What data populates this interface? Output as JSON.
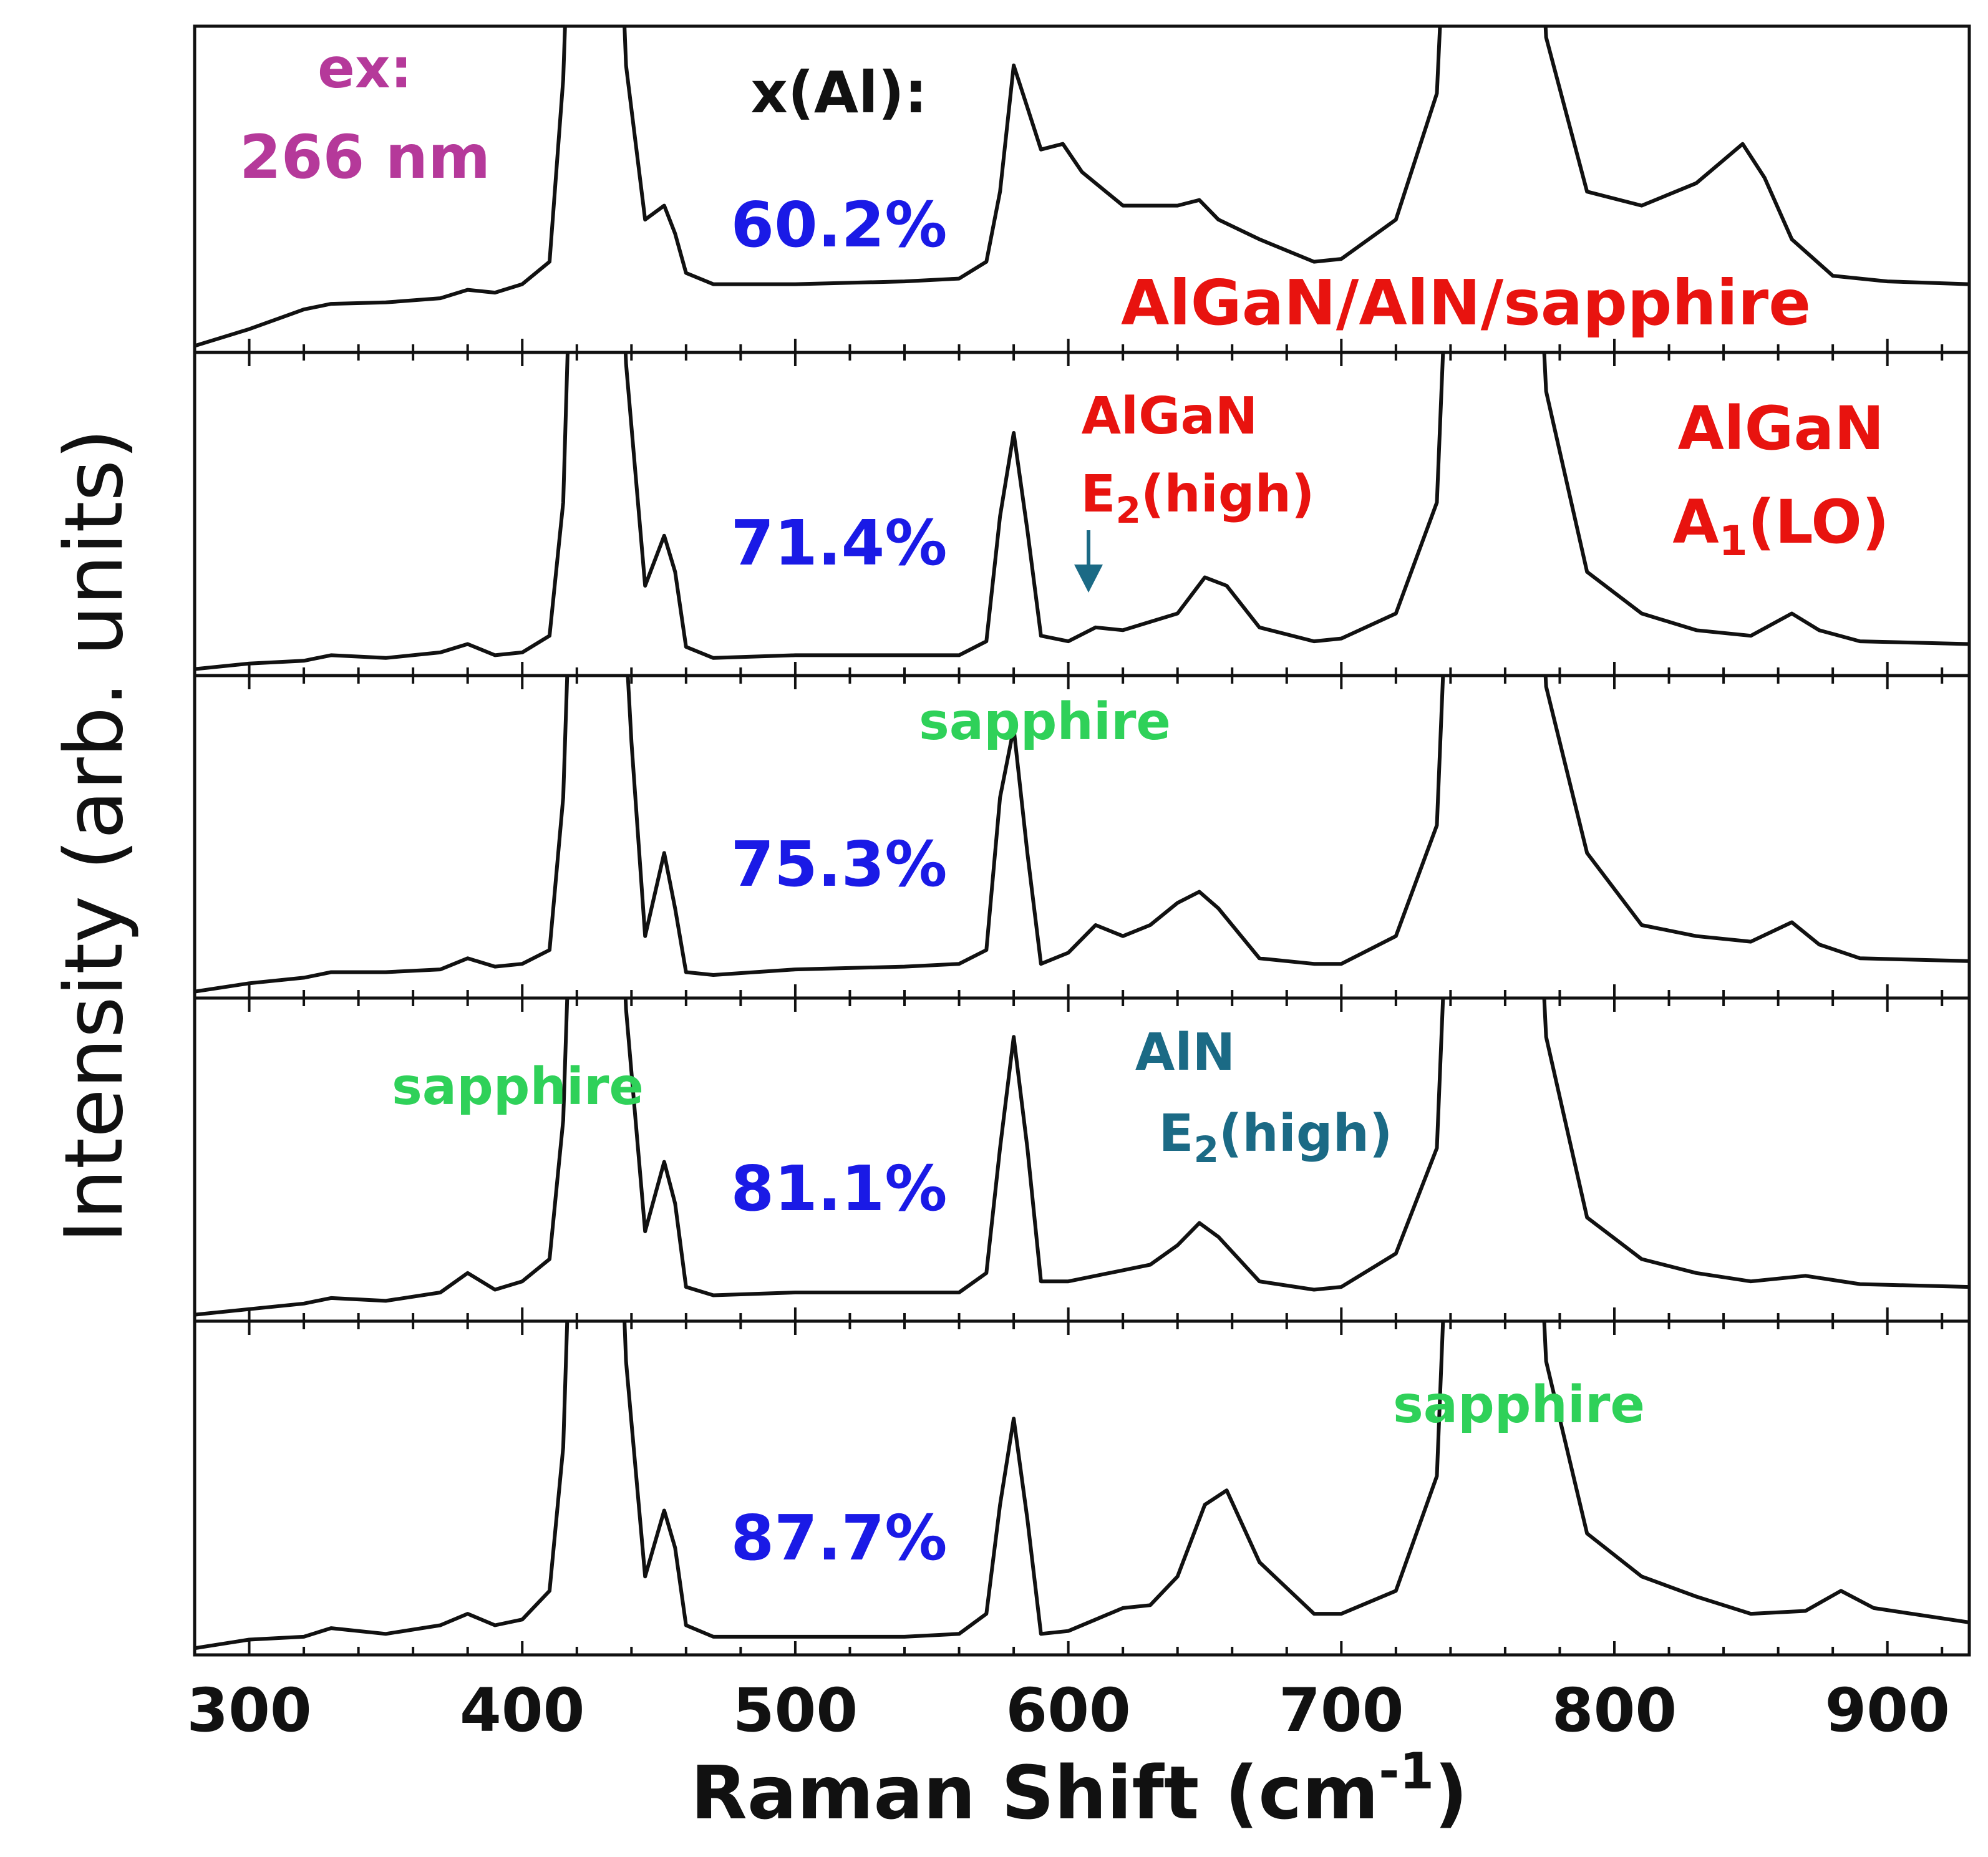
{
  "chart_data": {
    "type": "line",
    "title": "",
    "xlabel_main": "Raman Shift (cm",
    "xlabel_sup": "-1",
    "xlabel_close": ")",
    "ylabel": "Intensity (arb. units)",
    "xlim": [
      280,
      930
    ],
    "x_ticks": [
      "300",
      "400",
      "500",
      "600",
      "700",
      "800",
      "900"
    ],
    "series_label_color": "#1a1ae6",
    "series": [
      {
        "name": "60.2%",
        "baseline": 0.06,
        "points": [
          [
            280,
            0.0
          ],
          [
            300,
            0.06
          ],
          [
            320,
            0.13
          ],
          [
            330,
            0.15
          ],
          [
            350,
            0.155
          ],
          [
            370,
            0.17
          ],
          [
            380,
            0.2
          ],
          [
            390,
            0.19
          ],
          [
            400,
            0.22
          ],
          [
            410,
            0.3
          ],
          [
            415,
            0.95
          ],
          [
            418,
            1.8
          ],
          [
            425,
            3
          ],
          [
            430,
            3
          ],
          [
            438,
            1.0
          ],
          [
            445,
            0.45
          ],
          [
            452,
            0.5
          ],
          [
            456,
            0.4
          ],
          [
            460,
            0.26
          ],
          [
            470,
            0.22
          ],
          [
            500,
            0.22
          ],
          [
            540,
            0.23
          ],
          [
            560,
            0.24
          ],
          [
            570,
            0.3
          ],
          [
            575,
            0.55
          ],
          [
            580,
            1.0
          ],
          [
            585,
            0.85
          ],
          [
            590,
            0.7
          ],
          [
            598,
            0.72
          ],
          [
            605,
            0.62
          ],
          [
            620,
            0.5
          ],
          [
            640,
            0.5
          ],
          [
            648,
            0.52
          ],
          [
            655,
            0.45
          ],
          [
            670,
            0.38
          ],
          [
            690,
            0.3
          ],
          [
            700,
            0.31
          ],
          [
            720,
            0.45
          ],
          [
            735,
            0.9
          ],
          [
            745,
            3
          ],
          [
            765,
            3
          ],
          [
            775,
            1.1
          ],
          [
            790,
            0.55
          ],
          [
            810,
            0.5
          ],
          [
            830,
            0.58
          ],
          [
            847,
            0.72
          ],
          [
            855,
            0.6
          ],
          [
            865,
            0.38
          ],
          [
            880,
            0.25
          ],
          [
            900,
            0.23
          ],
          [
            930,
            0.22
          ]
        ]
      },
      {
        "name": "71.4%",
        "baseline": 0.04,
        "points": [
          [
            280,
            0.0
          ],
          [
            300,
            0.02
          ],
          [
            320,
            0.03
          ],
          [
            330,
            0.05
          ],
          [
            350,
            0.04
          ],
          [
            370,
            0.06
          ],
          [
            380,
            0.09
          ],
          [
            390,
            0.05
          ],
          [
            400,
            0.06
          ],
          [
            410,
            0.12
          ],
          [
            415,
            0.6
          ],
          [
            418,
            1.6
          ],
          [
            425,
            3
          ],
          [
            430,
            3
          ],
          [
            438,
            1.1
          ],
          [
            445,
            0.3
          ],
          [
            452,
            0.48
          ],
          [
            456,
            0.35
          ],
          [
            460,
            0.08
          ],
          [
            470,
            0.04
          ],
          [
            500,
            0.05
          ],
          [
            540,
            0.05
          ],
          [
            560,
            0.05
          ],
          [
            570,
            0.1
          ],
          [
            575,
            0.55
          ],
          [
            580,
            0.85
          ],
          [
            585,
            0.5
          ],
          [
            590,
            0.12
          ],
          [
            600,
            0.1
          ],
          [
            610,
            0.15
          ],
          [
            620,
            0.14
          ],
          [
            630,
            0.17
          ],
          [
            640,
            0.2
          ],
          [
            650,
            0.33
          ],
          [
            658,
            0.3
          ],
          [
            670,
            0.15
          ],
          [
            690,
            0.1
          ],
          [
            700,
            0.11
          ],
          [
            720,
            0.2
          ],
          [
            735,
            0.6
          ],
          [
            745,
            3
          ],
          [
            765,
            3
          ],
          [
            775,
            1.0
          ],
          [
            790,
            0.35
          ],
          [
            810,
            0.2
          ],
          [
            830,
            0.14
          ],
          [
            850,
            0.12
          ],
          [
            865,
            0.2
          ],
          [
            875,
            0.14
          ],
          [
            890,
            0.1
          ],
          [
            930,
            0.09
          ]
        ]
      },
      {
        "name": "75.3%",
        "baseline": 0.04,
        "points": [
          [
            280,
            0.0
          ],
          [
            300,
            0.03
          ],
          [
            320,
            0.05
          ],
          [
            330,
            0.07
          ],
          [
            350,
            0.07
          ],
          [
            370,
            0.08
          ],
          [
            380,
            0.12
          ],
          [
            390,
            0.09
          ],
          [
            400,
            0.1
          ],
          [
            410,
            0.15
          ],
          [
            415,
            0.7
          ],
          [
            418,
            1.6
          ],
          [
            425,
            3
          ],
          [
            430,
            3
          ],
          [
            435,
            1.8
          ],
          [
            440,
            0.9
          ],
          [
            445,
            0.2
          ],
          [
            452,
            0.5
          ],
          [
            456,
            0.3
          ],
          [
            460,
            0.07
          ],
          [
            470,
            0.06
          ],
          [
            500,
            0.08
          ],
          [
            540,
            0.09
          ],
          [
            560,
            0.1
          ],
          [
            570,
            0.15
          ],
          [
            575,
            0.7
          ],
          [
            580,
            0.95
          ],
          [
            585,
            0.5
          ],
          [
            590,
            0.1
          ],
          [
            600,
            0.14
          ],
          [
            610,
            0.24
          ],
          [
            620,
            0.2
          ],
          [
            630,
            0.24
          ],
          [
            640,
            0.32
          ],
          [
            648,
            0.36
          ],
          [
            655,
            0.3
          ],
          [
            670,
            0.12
          ],
          [
            690,
            0.1
          ],
          [
            700,
            0.1
          ],
          [
            720,
            0.2
          ],
          [
            735,
            0.6
          ],
          [
            745,
            3
          ],
          [
            765,
            3
          ],
          [
            775,
            1.1
          ],
          [
            790,
            0.5
          ],
          [
            810,
            0.24
          ],
          [
            830,
            0.2
          ],
          [
            850,
            0.18
          ],
          [
            865,
            0.25
          ],
          [
            875,
            0.17
          ],
          [
            890,
            0.12
          ],
          [
            930,
            0.11
          ]
        ]
      },
      {
        "name": "81.1%",
        "baseline": 0.04,
        "points": [
          [
            280,
            0.0
          ],
          [
            300,
            0.02
          ],
          [
            320,
            0.04
          ],
          [
            330,
            0.06
          ],
          [
            350,
            0.05
          ],
          [
            370,
            0.08
          ],
          [
            380,
            0.15
          ],
          [
            390,
            0.09
          ],
          [
            400,
            0.12
          ],
          [
            410,
            0.2
          ],
          [
            415,
            0.7
          ],
          [
            418,
            1.6
          ],
          [
            425,
            3
          ],
          [
            430,
            3
          ],
          [
            438,
            1.1
          ],
          [
            445,
            0.3
          ],
          [
            452,
            0.55
          ],
          [
            456,
            0.4
          ],
          [
            460,
            0.1
          ],
          [
            470,
            0.07
          ],
          [
            500,
            0.08
          ],
          [
            540,
            0.08
          ],
          [
            560,
            0.08
          ],
          [
            570,
            0.15
          ],
          [
            575,
            0.6
          ],
          [
            580,
            1.0
          ],
          [
            585,
            0.6
          ],
          [
            590,
            0.12
          ],
          [
            600,
            0.12
          ],
          [
            610,
            0.14
          ],
          [
            620,
            0.16
          ],
          [
            630,
            0.18
          ],
          [
            640,
            0.25
          ],
          [
            648,
            0.33
          ],
          [
            655,
            0.28
          ],
          [
            670,
            0.12
          ],
          [
            690,
            0.09
          ],
          [
            700,
            0.1
          ],
          [
            720,
            0.22
          ],
          [
            735,
            0.6
          ],
          [
            745,
            3
          ],
          [
            765,
            3
          ],
          [
            775,
            1.0
          ],
          [
            790,
            0.35
          ],
          [
            810,
            0.2
          ],
          [
            830,
            0.15
          ],
          [
            850,
            0.12
          ],
          [
            870,
            0.14
          ],
          [
            890,
            0.11
          ],
          [
            930,
            0.1
          ]
        ]
      },
      {
        "name": "87.7%",
        "baseline": 0.04,
        "points": [
          [
            280,
            0.0
          ],
          [
            300,
            0.03
          ],
          [
            320,
            0.04
          ],
          [
            330,
            0.07
          ],
          [
            350,
            0.05
          ],
          [
            370,
            0.08
          ],
          [
            380,
            0.12
          ],
          [
            390,
            0.08
          ],
          [
            400,
            0.1
          ],
          [
            410,
            0.2
          ],
          [
            415,
            0.7
          ],
          [
            418,
            1.6
          ],
          [
            425,
            3
          ],
          [
            430,
            3
          ],
          [
            438,
            1.0
          ],
          [
            445,
            0.25
          ],
          [
            452,
            0.48
          ],
          [
            456,
            0.35
          ],
          [
            460,
            0.08
          ],
          [
            470,
            0.04
          ],
          [
            500,
            0.04
          ],
          [
            540,
            0.04
          ],
          [
            560,
            0.05
          ],
          [
            570,
            0.12
          ],
          [
            575,
            0.5
          ],
          [
            580,
            0.8
          ],
          [
            585,
            0.45
          ],
          [
            590,
            0.05
          ],
          [
            600,
            0.06
          ],
          [
            610,
            0.1
          ],
          [
            620,
            0.14
          ],
          [
            630,
            0.15
          ],
          [
            640,
            0.25
          ],
          [
            650,
            0.5
          ],
          [
            658,
            0.55
          ],
          [
            670,
            0.3
          ],
          [
            690,
            0.12
          ],
          [
            700,
            0.12
          ],
          [
            720,
            0.2
          ],
          [
            735,
            0.6
          ],
          [
            745,
            3
          ],
          [
            765,
            3
          ],
          [
            775,
            1.0
          ],
          [
            790,
            0.4
          ],
          [
            810,
            0.25
          ],
          [
            830,
            0.18
          ],
          [
            850,
            0.12
          ],
          [
            870,
            0.13
          ],
          [
            883,
            0.2
          ],
          [
            895,
            0.14
          ],
          [
            930,
            0.09
          ]
        ]
      }
    ],
    "annotations": {
      "ex_label": "ex:",
      "ex_value": "266 nm",
      "x_al_label": "x(Al):",
      "structure": "AlGaN/AlN/sapphire",
      "algan_e2_line1": "AlGaN",
      "algan_e2_line2_main": "E",
      "algan_e2_line2_sub": "2",
      "algan_e2_line2_rest": "(high)",
      "algan_a1_line1": "AlGaN",
      "algan_a1_line2_main": "A",
      "algan_a1_line2_sub": "1",
      "algan_a1_line2_rest": "(LO)",
      "sapphire": "sapphire",
      "aln_line1": "AlN",
      "aln_line2_main": "E",
      "aln_line2_sub": "2",
      "aln_line2_rest": "(high)"
    },
    "colors": {
      "ex": "#b5399a",
      "red": "#e8130f",
      "green": "#2fd159",
      "teal": "#1b6a85",
      "blue": "#1a1ae6",
      "black": "#111111"
    }
  }
}
